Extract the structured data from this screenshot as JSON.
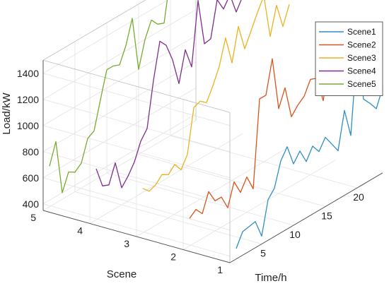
{
  "chart_data": {
    "type": "line",
    "projection": "3d",
    "xlabel": "Time/h",
    "ylabel": "Scene",
    "zlabel": "Load/kW",
    "x_ticks": [
      5,
      10,
      15,
      20
    ],
    "y_ticks": [
      1,
      2,
      3,
      4,
      5
    ],
    "z_ticks": [
      400,
      600,
      800,
      1000,
      1200,
      1400
    ],
    "xlim": [
      0,
      24
    ],
    "ylim": [
      1,
      5
    ],
    "zlim": [
      350,
      1500
    ],
    "grid": true,
    "legend_position": "top-right",
    "series": [
      {
        "name": "Scene1",
        "scene": 1,
        "color": "#2f8fc4",
        "x": [
          1,
          2,
          3,
          4,
          5,
          6,
          7,
          8,
          9,
          10,
          11,
          12,
          13,
          14,
          15,
          16,
          17,
          18,
          19,
          20,
          21,
          22,
          23,
          24
        ],
        "values": [
          430,
          530,
          540,
          550,
          410,
          660,
          720,
          900,
          980,
          820,
          890,
          780,
          870,
          800,
          880,
          800,
          720,
          1000,
          780,
          1420,
          1000,
          940,
          870,
          1000
        ]
      },
      {
        "name": "Scene2",
        "scene": 2,
        "color": "#d9531e",
        "x": [
          1,
          2,
          3,
          4,
          5,
          6,
          7,
          8,
          9,
          10,
          11,
          12,
          13,
          14,
          15,
          16,
          17,
          18,
          19,
          20,
          21,
          22,
          23,
          24
        ],
        "values": [
          560,
          600,
          540,
          680,
          580,
          580,
          470,
          640,
          530,
          620,
          500,
          1160,
          1160,
          1410,
          1000,
          1130,
          880,
          940,
          980,
          1080,
          1060,
          860,
          1170,
          1100
        ]
      },
      {
        "name": "Scene3",
        "scene": 3,
        "color": "#edb120",
        "x": [
          1,
          2,
          3,
          4,
          5,
          6,
          7,
          8,
          9,
          10,
          11,
          12,
          13,
          14,
          15,
          16,
          17,
          18,
          19,
          20,
          21,
          22,
          23,
          24
        ],
        "values": [
          690,
          640,
          660,
          710,
          680,
          730,
          660,
          750,
          1080,
          1100,
          1060,
          1160,
          1280,
          1470,
          1250,
          1500,
          1300,
          1410,
          1520,
          1620,
          1280,
          1490,
          1300,
          1440
        ]
      },
      {
        "name": "Scene4",
        "scene": 4,
        "color": "#7e2f8e",
        "x": [
          1,
          2,
          3,
          4,
          5,
          6,
          7,
          8,
          9,
          10,
          11,
          12,
          13,
          14,
          15,
          16,
          17,
          18,
          19,
          20,
          21,
          22,
          23,
          24
        ],
        "values": [
          740,
          580,
          560,
          700,
          480,
          540,
          620,
          750,
          820,
          1160,
          1430,
          1370,
          1230,
          1020,
          1250,
          1090,
          1570,
          1210,
          1220,
          1490,
          1390,
          1470,
          1310,
          1400
        ]
      },
      {
        "name": "Scene5",
        "scene": 5,
        "color": "#77ac30",
        "x": [
          1,
          2,
          3,
          4,
          5,
          6,
          7,
          8,
          9,
          10,
          11,
          12,
          13,
          14,
          15,
          16,
          17,
          18,
          19,
          20,
          21,
          22,
          23,
          24
        ],
        "values": [
          660,
          820,
          400,
          530,
          500,
          540,
          700,
          730,
          940,
          1140,
          1140,
          1120,
          1240,
          1420,
          1000,
          1200,
          1320,
          1260,
          1240,
          1570,
          1560,
          1410,
          1620,
          1310
        ]
      }
    ]
  }
}
